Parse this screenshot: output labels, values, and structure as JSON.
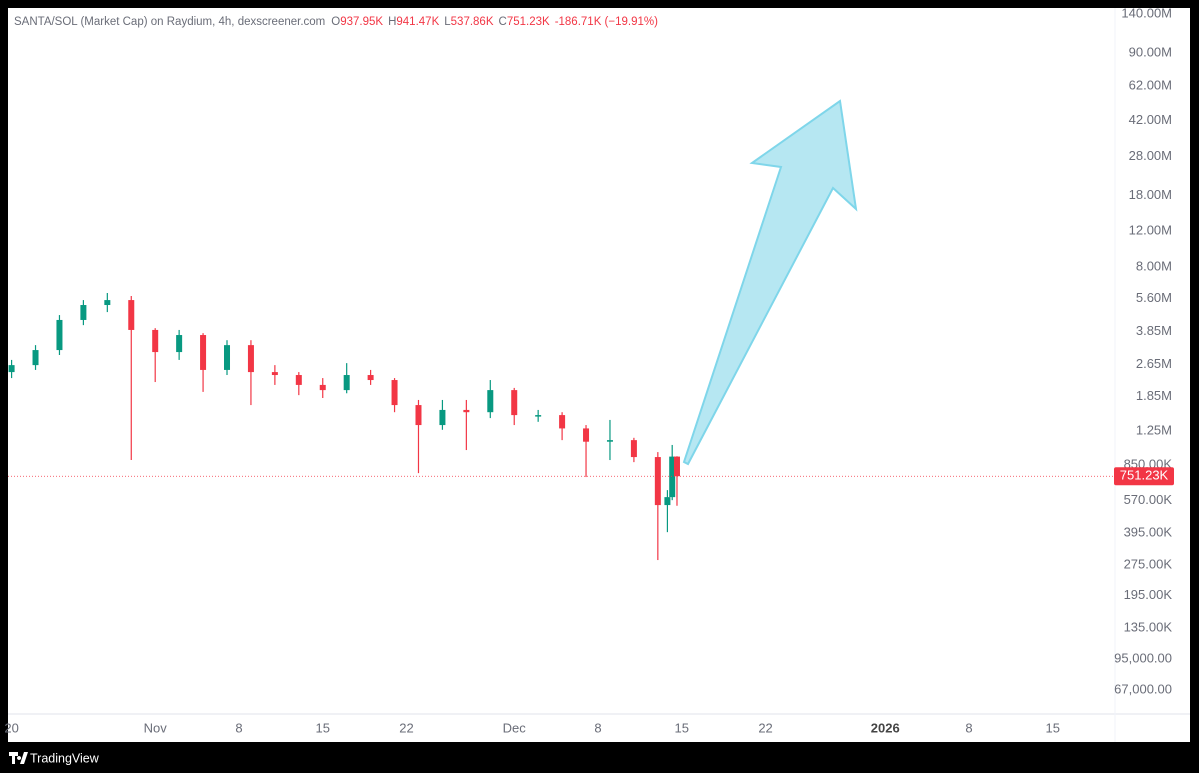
{
  "chart_data": {
    "type": "candlestick",
    "title": "SANTA/SOL (Market Cap) on Raydium, 4h, dexscreener.com",
    "ohlc_legend": [
      {
        "label": "O",
        "value": "937.95K"
      },
      {
        "label": "H",
        "value": "941.47K"
      },
      {
        "label": "L",
        "value": "537.86K"
      },
      {
        "label": "C",
        "value": "751.23K"
      }
    ],
    "change": "-186.71K (−19.91%)",
    "x": [
      0,
      2,
      4,
      6,
      8,
      10,
      12,
      14,
      16,
      18,
      20,
      22,
      24,
      26,
      28,
      30,
      32,
      34,
      36,
      38,
      40,
      42,
      44,
      46,
      48,
      50,
      52,
      54,
      54.8,
      55.2,
      55.6
    ],
    "open": [
      2440000,
      2640000,
      3130000,
      4400000,
      5210000,
      5510000,
      3930000,
      3060000,
      3710000,
      2500000,
      3310000,
      2440000,
      2360000,
      2110000,
      1990000,
      2360000,
      2230000,
      1680000,
      1340000,
      1590000,
      1550000,
      1990000,
      1500000,
      1500000,
      1290000,
      1110000,
      1130000,
      933000,
      542000,
      593000,
      937950
    ],
    "high": [
      2800000,
      3310000,
      4650000,
      5510000,
      5970000,
      5770000,
      4010000,
      3930000,
      3790000,
      3500000,
      3500000,
      2640000,
      2440000,
      2280000,
      2700000,
      2500000,
      2280000,
      1780000,
      1780000,
      1780000,
      2230000,
      2040000,
      1590000,
      1550000,
      1340000,
      1420000,
      1160000,
      987000,
      642000,
      1070000,
      941470
    ],
    "low": [
      2280000,
      2500000,
      2960000,
      4150000,
      4810000,
      902000,
      2180000,
      2800000,
      1950000,
      2360000,
      1680000,
      2110000,
      1880000,
      1820000,
      1920000,
      2110000,
      1550000,
      778000,
      1270000,
      1010000,
      1450000,
      1340000,
      1390000,
      1130000,
      744000,
      902000,
      881000,
      291000,
      399000,
      573000,
      537860
    ],
    "close": [
      2640000,
      3130000,
      4400000,
      5210000,
      5510000,
      3930000,
      3060000,
      3710000,
      2500000,
      3310000,
      2440000,
      2360000,
      2110000,
      1990000,
      2360000,
      2230000,
      1680000,
      1340000,
      1590000,
      1550000,
      1990000,
      1500000,
      1500000,
      1290000,
      1110000,
      1130000,
      933000,
      542000,
      593000,
      937950,
      751230
    ],
    "up_color": "#089981",
    "down_color": "#f23645",
    "last_price": {
      "value": 751230,
      "label": "751.23K"
    },
    "log_scale": true,
    "xlim": [
      -0.3,
      92.2
    ],
    "xticks": [
      {
        "value": 0,
        "label": "20"
      },
      {
        "value": 12,
        "label": "Nov"
      },
      {
        "value": 19,
        "label": "8"
      },
      {
        "value": 26,
        "label": "15"
      },
      {
        "value": 33,
        "label": "22"
      },
      {
        "value": 42,
        "label": "Dec"
      },
      {
        "value": 49,
        "label": "8"
      },
      {
        "value": 56,
        "label": "15"
      },
      {
        "value": 63,
        "label": "22"
      },
      {
        "value": 73,
        "label": "2026"
      },
      {
        "value": 80,
        "label": "8"
      },
      {
        "value": 87,
        "label": "15"
      }
    ],
    "ylim": [
      51000,
      150000000
    ],
    "yticks": [
      {
        "value": 140000000,
        "label": "140.00M"
      },
      {
        "value": 90000000,
        "label": "90.00M"
      },
      {
        "value": 62000000,
        "label": "62.00M"
      },
      {
        "value": 42000000,
        "label": "42.00M"
      },
      {
        "value": 28000000,
        "label": "28.00M"
      },
      {
        "value": 18000000,
        "label": "18.00M"
      },
      {
        "value": 12000000,
        "label": "12.00M"
      },
      {
        "value": 8000000,
        "label": "8.00M"
      },
      {
        "value": 5600000,
        "label": "5.60M"
      },
      {
        "value": 3850000,
        "label": "3.85M"
      },
      {
        "value": 2650000,
        "label": "2.65M"
      },
      {
        "value": 1850000,
        "label": "1.85M"
      },
      {
        "value": 1250000,
        "label": "1.25M"
      },
      {
        "value": 850000,
        "label": "850.00K"
      },
      {
        "value": 570000,
        "label": "570.00K"
      },
      {
        "value": 395000,
        "label": "395.00K"
      },
      {
        "value": 275000,
        "label": "275.00K"
      },
      {
        "value": 195000,
        "label": "195.00K"
      },
      {
        "value": 135000,
        "label": "135.00K"
      },
      {
        "value": 95000,
        "label": "95,000.00"
      },
      {
        "value": 67000,
        "label": "67,000.00"
      }
    ],
    "brand": "TradingView"
  }
}
